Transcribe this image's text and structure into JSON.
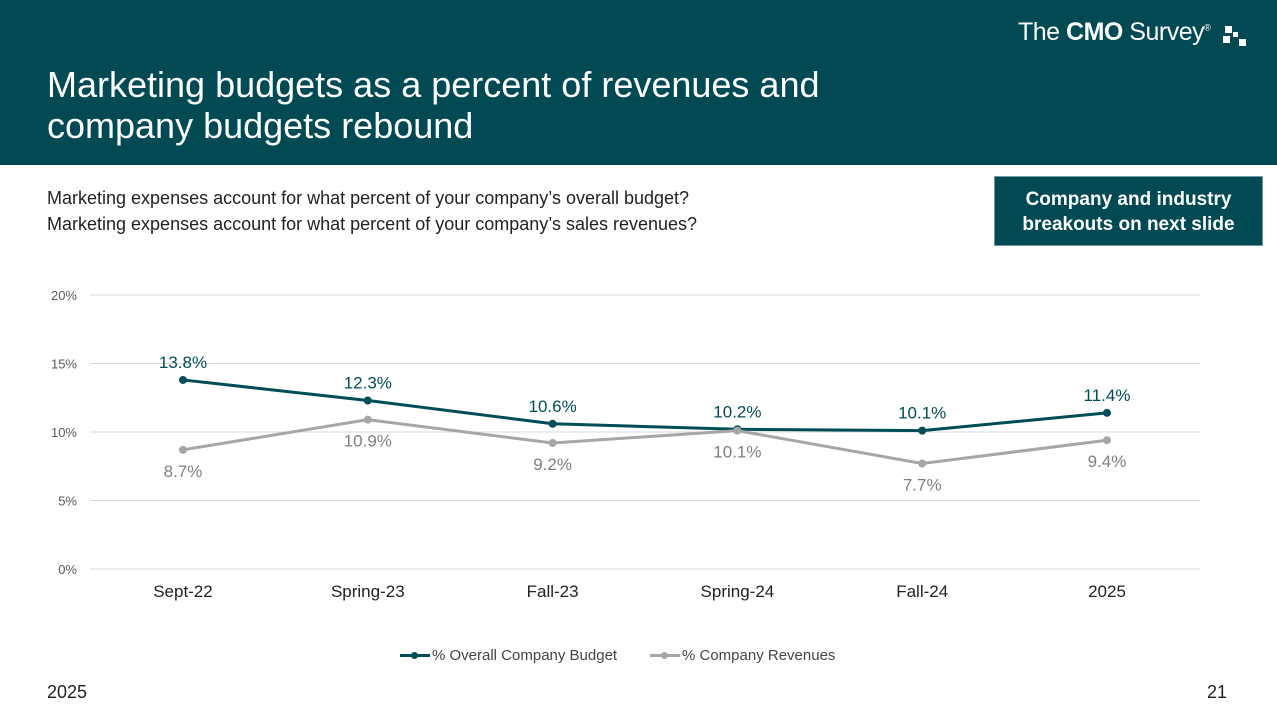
{
  "header": {
    "title": "Marketing budgets as a percent of revenues and company budgets rebound",
    "logo": {
      "pre": "The ",
      "bold": "CMO",
      "post": " Survey",
      "reg": "®"
    }
  },
  "questions": [
    "Marketing expenses account for what percent of your company’s overall budget?",
    "Marketing expenses account for what percent of your company’s sales revenues?"
  ],
  "callout": "Company and industry breakouts on next slide",
  "footer": {
    "year": "2025",
    "page": "21"
  },
  "colors": {
    "header": "#014a54",
    "budget": "#004d55",
    "revenues": "#a6a6a6"
  },
  "chart_data": {
    "type": "line",
    "categories": [
      "Sept-22",
      "Spring-23",
      "Fall-23",
      "Spring-24",
      "Fall-24",
      "2025"
    ],
    "ylim": [
      0,
      20
    ],
    "yticks": [
      "0%",
      "5%",
      "10%",
      "15%",
      "20%"
    ],
    "grid": true,
    "legend": "bottom",
    "series": [
      {
        "name": "% Overall Company Budget",
        "values": [
          13.8,
          12.3,
          10.6,
          10.2,
          10.1,
          11.4
        ],
        "labels": [
          "13.8%",
          "12.3%",
          "10.6%",
          "10.2%",
          "10.1%",
          "11.4%"
        ]
      },
      {
        "name": "% Company Revenues",
        "values": [
          8.7,
          10.9,
          9.2,
          10.1,
          7.7,
          9.4
        ],
        "labels": [
          "8.7%",
          "10.9%",
          "9.2%",
          "10.1%",
          "7.7%",
          "9.4%"
        ]
      }
    ]
  }
}
